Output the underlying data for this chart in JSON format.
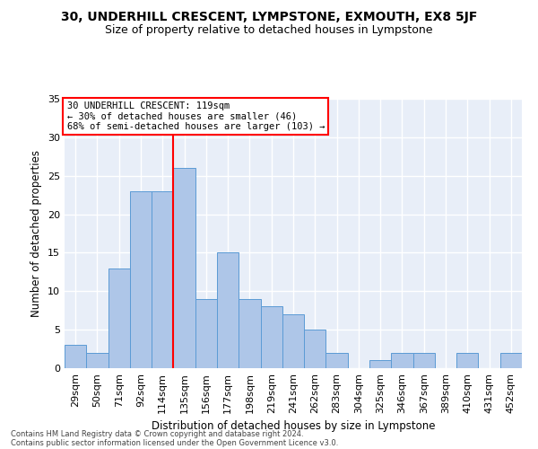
{
  "title": "30, UNDERHILL CRESCENT, LYMPSTONE, EXMOUTH, EX8 5JF",
  "subtitle": "Size of property relative to detached houses in Lympstone",
  "xlabel": "Distribution of detached houses by size in Lympstone",
  "ylabel": "Number of detached properties",
  "categories": [
    "29sqm",
    "50sqm",
    "71sqm",
    "92sqm",
    "114sqm",
    "135sqm",
    "156sqm",
    "177sqm",
    "198sqm",
    "219sqm",
    "241sqm",
    "262sqm",
    "283sqm",
    "304sqm",
    "325sqm",
    "346sqm",
    "367sqm",
    "389sqm",
    "410sqm",
    "431sqm",
    "452sqm"
  ],
  "values": [
    3,
    2,
    13,
    23,
    23,
    26,
    9,
    15,
    9,
    8,
    7,
    5,
    2,
    0,
    1,
    2,
    2,
    0,
    2,
    0,
    2
  ],
  "bar_color": "#aec6e8",
  "bar_edge_color": "#5b9bd5",
  "vline_color": "red",
  "vline_x": 4.5,
  "annotation_text": "30 UNDERHILL CRESCENT: 119sqm\n← 30% of detached houses are smaller (46)\n68% of semi-detached houses are larger (103) →",
  "annotation_box_color": "white",
  "annotation_box_edge_color": "red",
  "ylim": [
    0,
    35
  ],
  "yticks": [
    0,
    5,
    10,
    15,
    20,
    25,
    30,
    35
  ],
  "background_color": "#e8eef8",
  "grid_color": "white",
  "footer1": "Contains HM Land Registry data © Crown copyright and database right 2024.",
  "footer2": "Contains public sector information licensed under the Open Government Licence v3.0."
}
